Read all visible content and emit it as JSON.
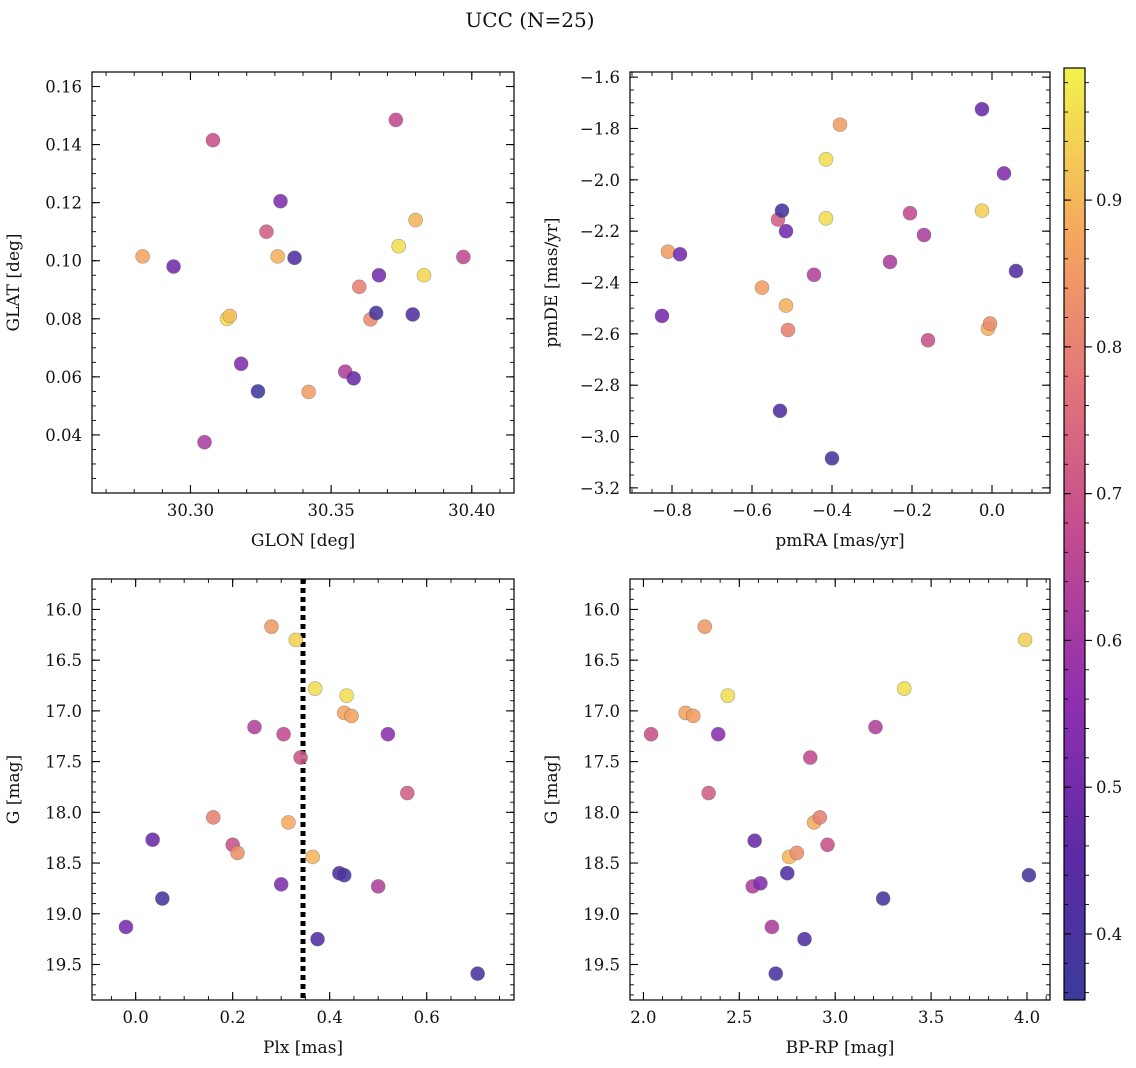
{
  "title": "UCC (N=25)",
  "colorbar": {
    "ticks": [
      0.4,
      0.5,
      0.6,
      0.7,
      0.8,
      0.9
    ],
    "tick_labels": [
      "0.4",
      "0.5",
      "0.6",
      "0.7",
      "0.8",
      "0.9"
    ],
    "range": [
      0.355,
      0.99
    ],
    "colormap": "plasma"
  },
  "chart_data": [
    {
      "type": "scatter",
      "name": "glon-glat",
      "xlabel": "GLON [deg]",
      "ylabel": "GLAT [deg]",
      "xlim": [
        30.265,
        30.415
      ],
      "ylim": [
        0.02,
        0.165
      ],
      "xticks": [
        30.3,
        30.35,
        30.4
      ],
      "xtick_labels": [
        "30.30",
        "30.35",
        "30.40"
      ],
      "xminor": 0.01,
      "yticks": [
        0.04,
        0.06,
        0.08,
        0.1,
        0.12,
        0.14,
        0.16
      ],
      "ytick_labels": [
        "0.04",
        "0.06",
        "0.08",
        "0.10",
        "0.12",
        "0.14",
        "0.16"
      ],
      "yminor": 0.005,
      "x": [
        30.283,
        30.294,
        30.305,
        30.308,
        30.313,
        30.314,
        30.318,
        30.324,
        30.327,
        30.331,
        30.332,
        30.337,
        30.342,
        30.355,
        30.358,
        30.36,
        30.364,
        30.366,
        30.367,
        30.373,
        30.374,
        30.379,
        30.38,
        30.383,
        30.397
      ],
      "y": [
        0.1015,
        0.098,
        0.0375,
        0.1415,
        0.08,
        0.081,
        0.0645,
        0.055,
        0.11,
        0.1015,
        0.1205,
        0.101,
        0.0548,
        0.0618,
        0.0595,
        0.091,
        0.0798,
        0.082,
        0.095,
        0.1485,
        0.105,
        0.0815,
        0.114,
        0.095,
        0.1013
      ],
      "c": [
        0.87,
        0.5,
        0.62,
        0.69,
        0.96,
        0.91,
        0.53,
        0.37,
        0.72,
        0.89,
        0.53,
        0.42,
        0.86,
        0.63,
        0.48,
        0.8,
        0.82,
        0.39,
        0.51,
        0.67,
        0.96,
        0.42,
        0.9,
        0.95,
        0.67
      ]
    },
    {
      "type": "scatter",
      "name": "pm",
      "xlabel": "pmRA [mas/yr]",
      "ylabel": "pmDE [mas/yr]",
      "xlim": [
        -0.905,
        0.145
      ],
      "ylim": [
        -3.22,
        -1.58
      ],
      "xticks": [
        -0.8,
        -0.6,
        -0.4,
        -0.2,
        0.0
      ],
      "xtick_labels": [
        "−0.8",
        "−0.6",
        "−0.4",
        "−0.2",
        "0.0"
      ],
      "xminor": 0.05,
      "yticks": [
        -3.2,
        -3.0,
        -2.8,
        -2.6,
        -2.4,
        -2.2,
        -2.0,
        -1.8,
        -1.6
      ],
      "ytick_labels": [
        "−3.2",
        "−3.0",
        "−2.8",
        "−2.6",
        "−2.4",
        "−2.2",
        "−2.0",
        "−1.8",
        "−1.6"
      ],
      "yminor": 0.05,
      "x": [
        -0.825,
        -0.81,
        -0.78,
        -0.575,
        -0.535,
        -0.53,
        -0.525,
        -0.515,
        -0.515,
        -0.51,
        -0.445,
        -0.415,
        -0.415,
        -0.4,
        -0.38,
        -0.255,
        -0.205,
        -0.17,
        -0.16,
        -0.025,
        -0.025,
        -0.01,
        -0.005,
        0.03,
        0.06
      ],
      "y": [
        -2.53,
        -2.28,
        -2.29,
        -2.42,
        -2.155,
        -2.9,
        -2.12,
        -2.2,
        -2.49,
        -2.585,
        -2.37,
        -1.92,
        -2.15,
        -3.085,
        -1.785,
        -2.32,
        -2.13,
        -2.215,
        -2.625,
        -1.725,
        -2.12,
        -2.58,
        -2.56,
        -1.975,
        -2.355
      ],
      "c": [
        0.5,
        0.86,
        0.5,
        0.86,
        0.72,
        0.42,
        0.39,
        0.5,
        0.89,
        0.8,
        0.63,
        0.96,
        0.96,
        0.39,
        0.86,
        0.62,
        0.67,
        0.62,
        0.69,
        0.48,
        0.94,
        0.89,
        0.82,
        0.53,
        0.42
      ]
    },
    {
      "type": "scatter",
      "name": "plx-g",
      "xlabel": "Plx [mas]",
      "ylabel": "G [mag]",
      "xlim": [
        -0.09,
        0.78
      ],
      "ylim": [
        19.85,
        15.7
      ],
      "xticks": [
        0.0,
        0.2,
        0.4,
        0.6
      ],
      "xtick_labels": [
        "0.0",
        "0.2",
        "0.4",
        "0.6"
      ],
      "xminor": 0.05,
      "yticks": [
        16.0,
        16.5,
        17.0,
        17.5,
        18.0,
        18.5,
        19.0,
        19.5
      ],
      "ytick_labels": [
        "16.0",
        "16.5",
        "17.0",
        "17.5",
        "18.0",
        "18.5",
        "19.0",
        "19.5"
      ],
      "yminor": 0.1,
      "vline": 0.345,
      "x": [
        -0.02,
        0.035,
        0.055,
        0.16,
        0.2,
        0.21,
        0.245,
        0.28,
        0.3,
        0.305,
        0.315,
        0.33,
        0.34,
        0.365,
        0.37,
        0.375,
        0.42,
        0.43,
        0.43,
        0.435,
        0.445,
        0.5,
        0.52,
        0.56,
        0.705
      ],
      "y": [
        19.13,
        18.27,
        18.85,
        18.05,
        18.32,
        18.4,
        17.16,
        16.17,
        18.71,
        17.23,
        18.1,
        16.3,
        17.46,
        18.44,
        16.78,
        19.25,
        18.6,
        17.02,
        18.62,
        16.85,
        17.05,
        18.73,
        17.23,
        17.81,
        19.59
      ],
      "c": [
        0.51,
        0.48,
        0.39,
        0.8,
        0.69,
        0.83,
        0.63,
        0.85,
        0.53,
        0.67,
        0.88,
        0.94,
        0.7,
        0.9,
        0.96,
        0.42,
        0.42,
        0.87,
        0.39,
        0.96,
        0.87,
        0.63,
        0.55,
        0.72,
        0.4
      ]
    },
    {
      "type": "scatter",
      "name": "color-mag",
      "xlabel": "BP-RP [mag]",
      "ylabel": "G [mag]",
      "xlim": [
        1.93,
        4.12
      ],
      "ylim": [
        19.85,
        15.7
      ],
      "xticks": [
        2.0,
        2.5,
        3.0,
        3.5,
        4.0
      ],
      "xtick_labels": [
        "2.0",
        "2.5",
        "3.0",
        "3.5",
        "4.0"
      ],
      "xminor": 0.1,
      "yticks": [
        16.0,
        16.5,
        17.0,
        17.5,
        18.0,
        18.5,
        19.0,
        19.5
      ],
      "ytick_labels": [
        "16.0",
        "16.5",
        "17.0",
        "17.5",
        "18.0",
        "18.5",
        "19.0",
        "19.5"
      ],
      "yminor": 0.1,
      "x": [
        2.04,
        2.22,
        2.26,
        2.32,
        2.34,
        2.39,
        2.44,
        2.57,
        2.58,
        2.61,
        2.67,
        2.69,
        2.75,
        2.76,
        2.8,
        2.84,
        2.87,
        2.89,
        2.92,
        2.96,
        3.21,
        3.25,
        3.36,
        3.99,
        4.01
      ],
      "y": [
        17.23,
        17.02,
        17.05,
        16.17,
        17.81,
        17.23,
        16.85,
        18.73,
        18.28,
        18.7,
        19.13,
        19.59,
        18.6,
        18.44,
        18.4,
        19.25,
        17.46,
        18.1,
        18.05,
        18.32,
        17.16,
        18.85,
        16.78,
        16.3,
        18.62
      ],
      "c": [
        0.69,
        0.87,
        0.86,
        0.85,
        0.72,
        0.55,
        0.96,
        0.63,
        0.48,
        0.53,
        0.62,
        0.4,
        0.42,
        0.9,
        0.83,
        0.42,
        0.67,
        0.88,
        0.8,
        0.69,
        0.63,
        0.39,
        0.96,
        0.94,
        0.39
      ]
    }
  ]
}
